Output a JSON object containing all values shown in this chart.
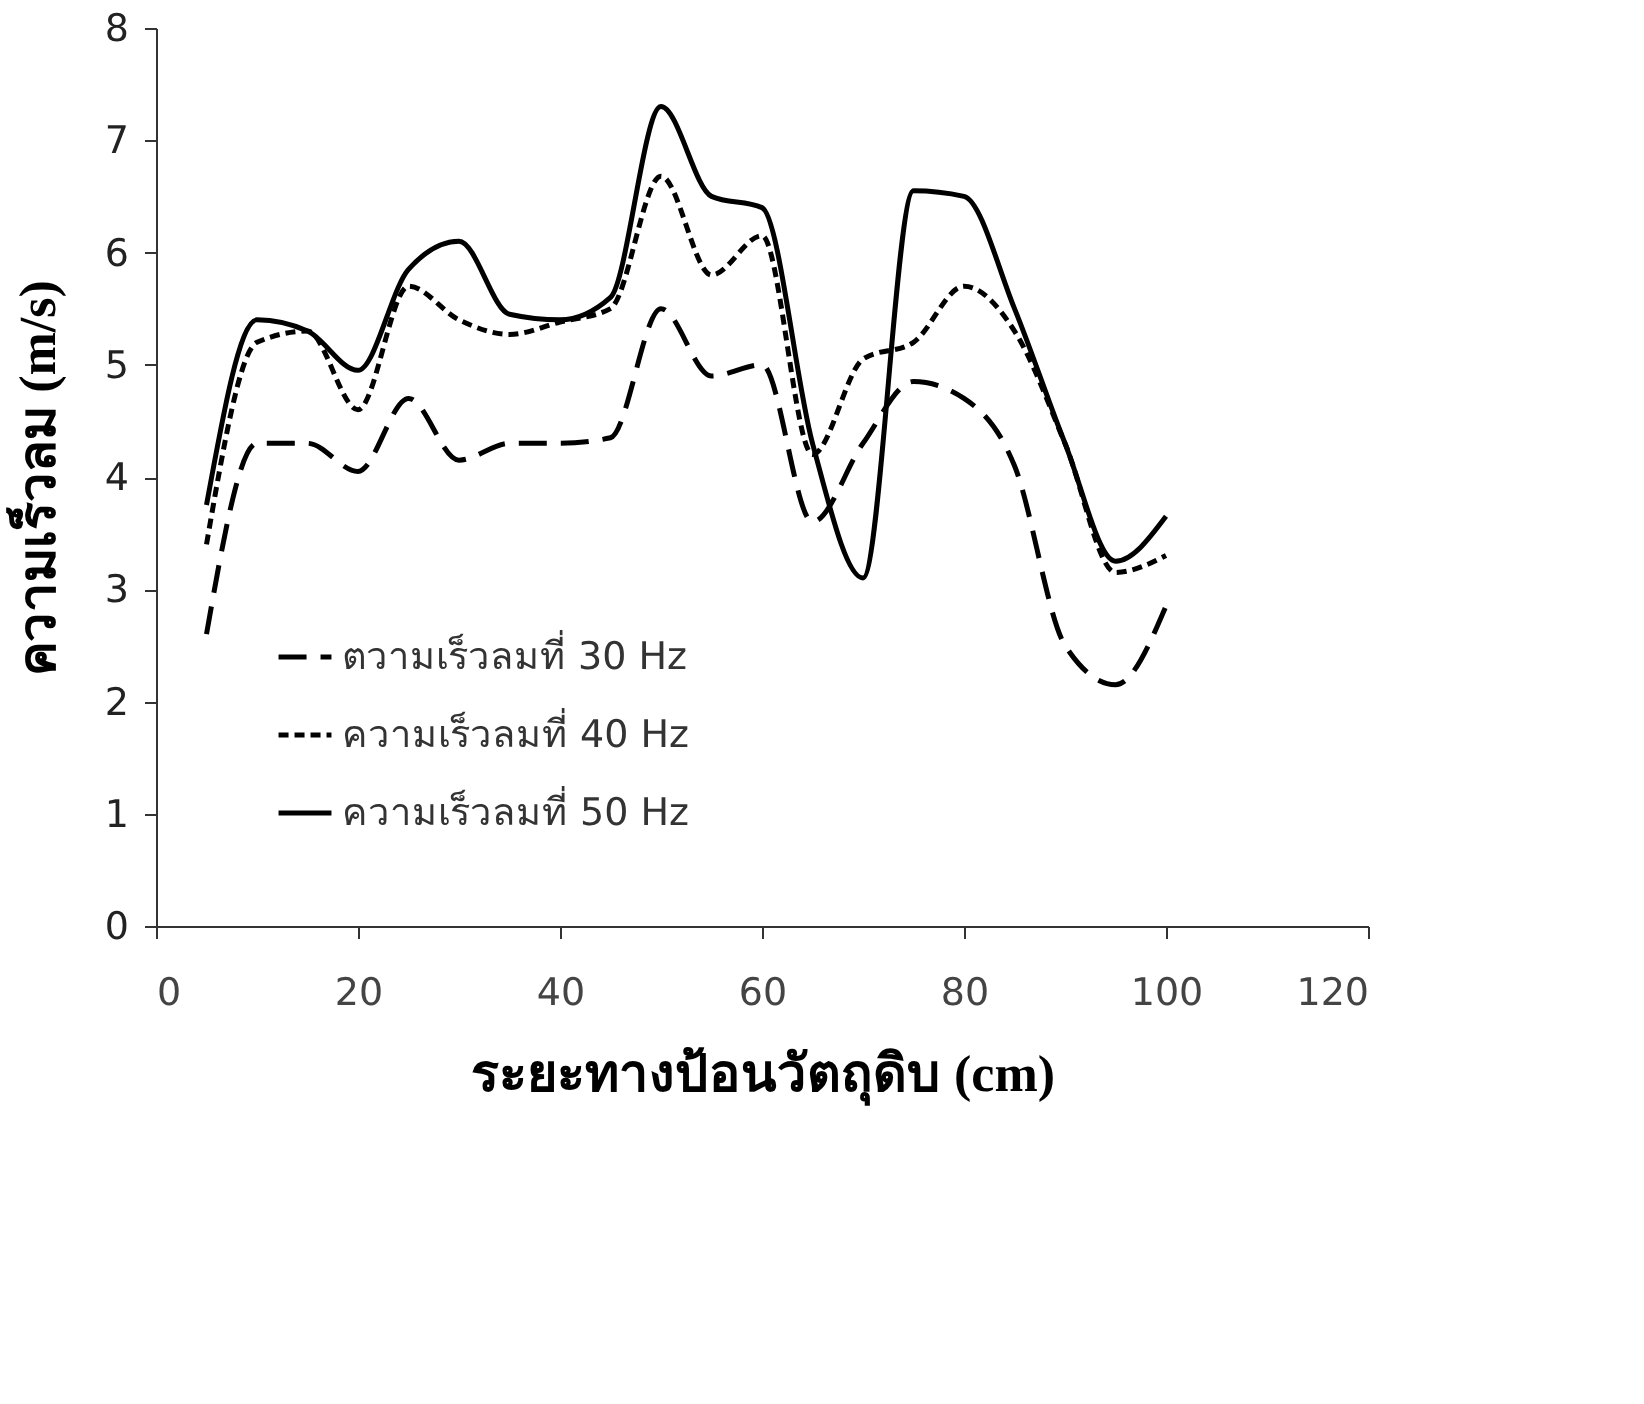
{
  "chart_data": {
    "type": "line",
    "xlabel": "ระยะทางป้อนวัตถุดิบ (cm)",
    "ylabel": "ความเร็วลม (m/s)",
    "x": [
      5,
      10,
      15,
      20,
      25,
      30,
      35,
      40,
      45,
      50,
      55,
      60,
      65,
      70,
      75,
      80,
      85,
      90,
      95,
      100
    ],
    "series": [
      {
        "name": "ตวามเร็วลมที่ 30 Hz",
        "color": "#000000",
        "line_style": "dashed",
        "values": [
          2.6,
          4.3,
          4.3,
          4.05,
          4.7,
          4.15,
          4.3,
          4.3,
          4.35,
          5.5,
          4.9,
          5.0,
          3.6,
          4.3,
          4.85,
          4.7,
          4.1,
          2.5,
          2.15,
          2.85
        ]
      },
      {
        "name": "ความเร็วลมที่ 40 Hz",
        "color": "#000000",
        "line_style": "dotted",
        "values": [
          3.4,
          5.2,
          5.3,
          4.6,
          5.7,
          5.4,
          5.27,
          5.38,
          5.5,
          6.68,
          5.8,
          6.15,
          4.2,
          5.05,
          5.2,
          5.7,
          5.3,
          4.3,
          3.15,
          3.3
        ]
      },
      {
        "name": "ความเร็วลมที่ 50 Hz",
        "color": "#000000",
        "line_style": "solid",
        "values": [
          3.75,
          5.4,
          5.3,
          4.95,
          5.85,
          6.1,
          5.45,
          5.4,
          5.6,
          7.3,
          6.5,
          6.4,
          4.3,
          3.1,
          6.55,
          6.5,
          5.5,
          4.3,
          3.25,
          3.65
        ]
      }
    ],
    "xlim": [
      0,
      120
    ],
    "xticks": [
      0,
      20,
      40,
      60,
      80,
      100,
      120
    ],
    "ylim": [
      0,
      8
    ],
    "yticks": [
      0,
      1,
      2,
      3,
      4,
      5,
      6,
      7,
      8
    ],
    "grid": false,
    "legend": "bottom left",
    "marker": "none"
  }
}
